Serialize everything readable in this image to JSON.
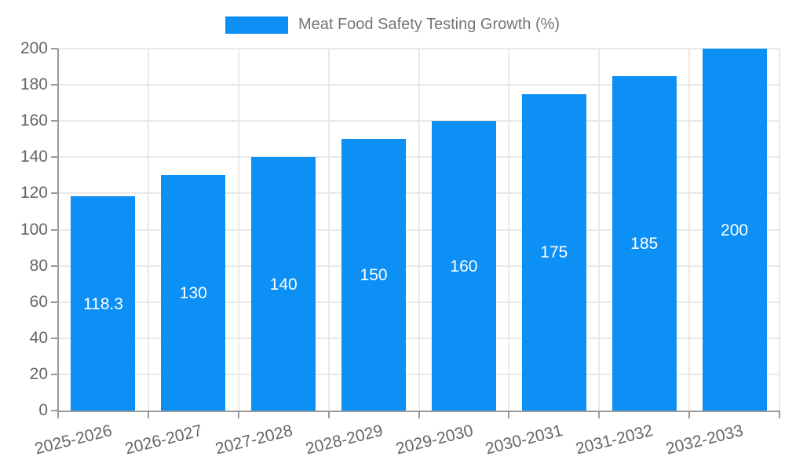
{
  "chart_data": {
    "type": "bar",
    "title": "Meat Food Safety Testing Growth (%)",
    "categories": [
      "2025-2026",
      "2026-2027",
      "2027-2028",
      "2028-2029",
      "2029-2030",
      "2030-2031",
      "2031-2032",
      "2032-2033"
    ],
    "values": [
      118.3,
      130,
      140,
      150,
      160,
      175,
      185,
      200
    ],
    "value_labels": [
      "118.3",
      "130",
      "140",
      "150",
      "160",
      "175",
      "185",
      "200"
    ],
    "xlabel": "",
    "ylabel": "",
    "ylim": [
      0,
      200
    ],
    "yticks": [
      0,
      20,
      40,
      60,
      80,
      100,
      120,
      140,
      160,
      180,
      200
    ],
    "grid": true,
    "legend_position": "top-center",
    "bar_color": "#0d90f5",
    "bar_label_color": "#ffffff",
    "grid_color": "#e9e9e9",
    "axis_color": "#9a9a9a",
    "text_color": "#666666",
    "legend_text_color": "#757575"
  }
}
